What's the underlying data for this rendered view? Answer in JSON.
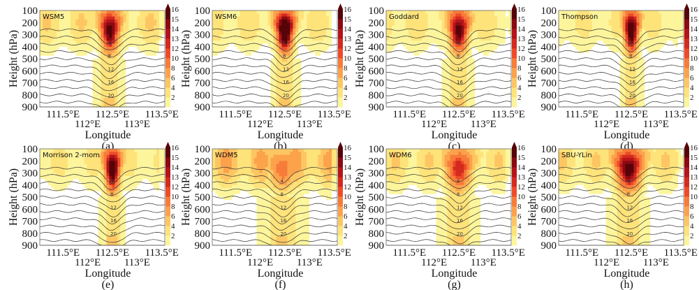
{
  "chart_data": {
    "type": "heatmap",
    "ylabel": "Height (hPa)",
    "xlabel": "Longitude",
    "yticks": [
      "100",
      "200",
      "300",
      "400",
      "500",
      "600",
      "700",
      "800",
      "900"
    ],
    "ylim": [
      900,
      100
    ],
    "xticks": [
      "111.5°E",
      "112°E",
      "112.5°E",
      "113°E",
      "113.5°E"
    ],
    "xtick_values": [
      111.5,
      112.0,
      112.5,
      113.0,
      113.5
    ],
    "xlim": [
      111.03,
      113.56
    ],
    "colorbar": {
      "levels": [
        2,
        4,
        6,
        8,
        10,
        12,
        13,
        14,
        15,
        16
      ],
      "labels": [
        "2",
        "4",
        "6",
        "8",
        "10",
        "12",
        "13",
        "14",
        "15",
        "16"
      ],
      "colors": [
        "#ffffff",
        "#fdf59c",
        "#fde37a",
        "#fdc663",
        "#fca24c",
        "#f77c3a",
        "#ee4b2a",
        "#d42a1f",
        "#b4141a",
        "#8b0a12",
        "#560408"
      ]
    },
    "contour_labels": [
      "4",
      "8",
      "12",
      "16",
      "20"
    ],
    "panels": [
      {
        "title": "WSM5",
        "caption": "(a)"
      },
      {
        "title": "WSM6",
        "caption": "(b)"
      },
      {
        "title": "Goddard",
        "caption": "(c)"
      },
      {
        "title": "Thompson",
        "caption": "(d)"
      },
      {
        "title": "Morrison 2-mom",
        "caption": "(e)"
      },
      {
        "title": "WDM5",
        "caption": "(f)"
      },
      {
        "title": "WDM6",
        "caption": "(g)"
      },
      {
        "title": "SBU-YLin",
        "caption": "(h)"
      }
    ]
  }
}
